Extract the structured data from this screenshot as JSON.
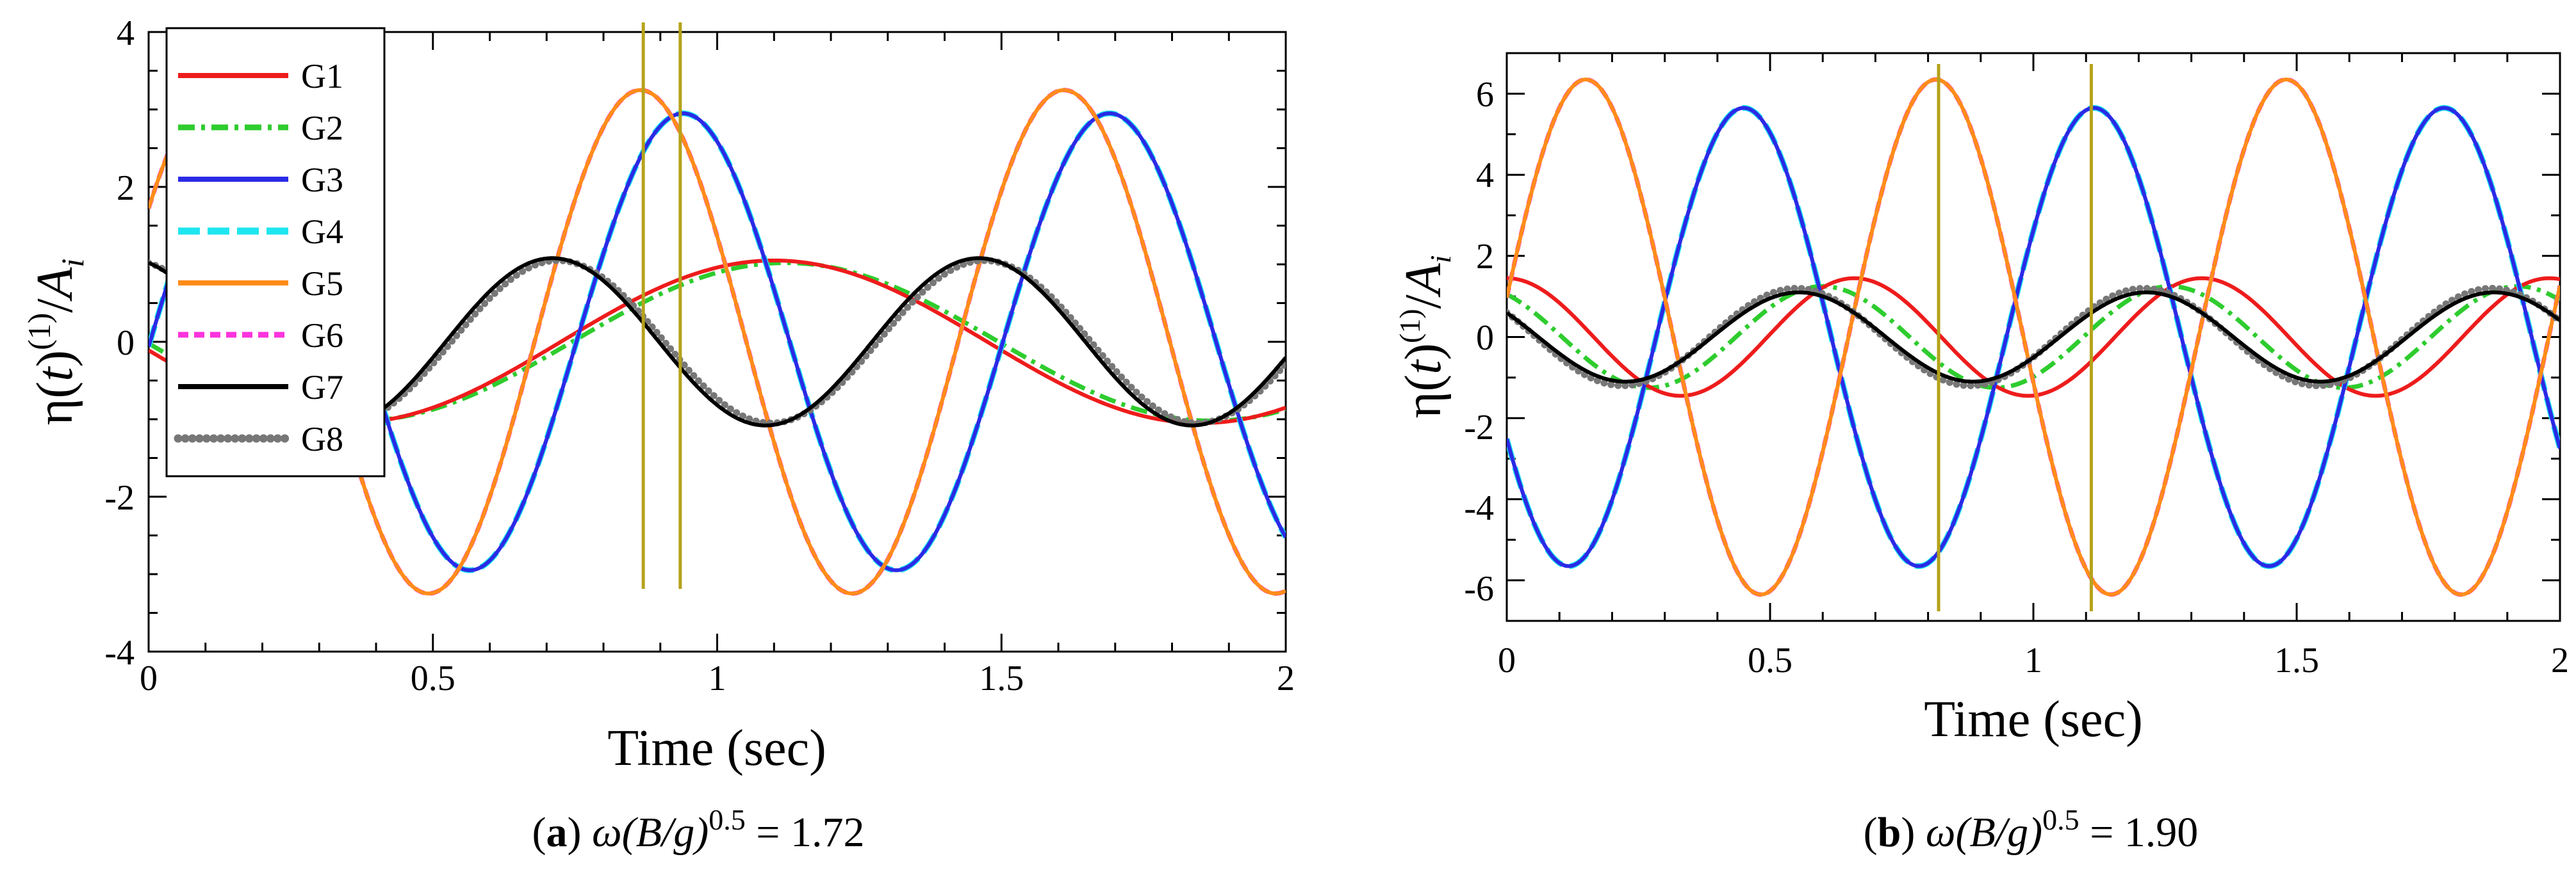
{
  "chart_data": [
    {
      "type": "line",
      "xlabel": "Time (sec)",
      "ylabel": {
        "eta": "η(",
        "t": "t",
        "rp": ")",
        "sup": "(1)",
        "slash": "/",
        "A": "A",
        "sub": "i"
      },
      "xlim": [
        0,
        2
      ],
      "ylim": [
        -4,
        4
      ],
      "x_ticks": [
        "0",
        "0.5",
        "1",
        "1.5",
        "2"
      ],
      "y_ticks": [
        "-4",
        "-2",
        "0",
        "2",
        "4"
      ],
      "grid": false,
      "legend": "top-left",
      "caption": {
        "label": "a",
        "expr": "ω(B/g)",
        "exp": "0.5",
        "value": "= 1.72"
      },
      "vertical_markers": [
        0.87,
        0.935
      ],
      "marker_color": "#b5a21a",
      "series": [
        {
          "name": "G1",
          "color": "#ee1c1c",
          "dash": "solid",
          "period": 1.5,
          "amplitude": 1.05,
          "peak": 1.1
        },
        {
          "name": "G2",
          "color": "#2ecc2e",
          "dash": "dashdot",
          "period": 1.5,
          "amplitude": 1.02,
          "peak": 1.12
        },
        {
          "name": "G3",
          "color": "#2a2ae6",
          "dash": "solid",
          "period": 0.75,
          "amplitude": 2.95,
          "peak": 0.94
        },
        {
          "name": "G4",
          "color": "#1ee6f0",
          "dash": "longdash",
          "period": 0.75,
          "amplitude": 2.95,
          "peak": 0.94
        },
        {
          "name": "G5",
          "color": "#ff8c1a",
          "dash": "solid",
          "period": 0.745,
          "amplitude": 3.25,
          "peak": 0.865
        },
        {
          "name": "G6",
          "color": "#ff33dd",
          "dash": "dash",
          "period": 0.745,
          "amplitude": 3.25,
          "peak": 0.865
        },
        {
          "name": "G7",
          "color": "#000000",
          "dash": "solid",
          "period": 0.75,
          "amplitude": 1.08,
          "peak": 0.71
        },
        {
          "name": "G8",
          "color": "#777777",
          "dash": "dotted",
          "period": 0.75,
          "amplitude": 1.05,
          "peak": 0.72
        }
      ]
    },
    {
      "type": "line",
      "xlabel": "Time (sec)",
      "ylabel": {
        "eta": "η(",
        "t": "t",
        "rp": ")",
        "sup": "(1)",
        "slash": "/",
        "A": "A",
        "sub": "i"
      },
      "xlim": [
        0,
        2
      ],
      "ylim": [
        -7,
        7
      ],
      "x_ticks": [
        "0",
        "0.5",
        "1",
        "1.5",
        "2"
      ],
      "y_ticks": [
        "-6",
        "-4",
        "-2",
        "0",
        "2",
        "4",
        "6"
      ],
      "grid": false,
      "caption": {
        "label": "b",
        "expr": "ω(B/g)",
        "exp": "0.5",
        "value": "= 1.90"
      },
      "vertical_markers": [
        0.82,
        1.11
      ],
      "marker_color": "#b5a21a",
      "series": [
        {
          "name": "G1",
          "color": "#ee1c1c",
          "dash": "solid",
          "period": 0.66,
          "amplitude": 1.45,
          "peak": 0.66
        },
        {
          "name": "G2",
          "color": "#2ecc2e",
          "dash": "dashdot",
          "period": 0.66,
          "amplitude": 1.25,
          "peak": 0.6
        },
        {
          "name": "G3",
          "color": "#2a2ae6",
          "dash": "solid",
          "period": 0.665,
          "amplitude": 5.65,
          "peak": 0.45
        },
        {
          "name": "G4",
          "color": "#1ee6f0",
          "dash": "longdash",
          "period": 0.665,
          "amplitude": 5.65,
          "peak": 0.45
        },
        {
          "name": "G5",
          "color": "#ff8c1a",
          "dash": "solid",
          "period": 0.665,
          "amplitude": 6.35,
          "peak": 0.15
        },
        {
          "name": "G6",
          "color": "#ff33dd",
          "dash": "dash",
          "period": 0.665,
          "amplitude": 6.35,
          "peak": 0.15
        },
        {
          "name": "G7",
          "color": "#000000",
          "dash": "solid",
          "period": 0.66,
          "amplitude": 1.1,
          "peak": 0.555
        },
        {
          "name": "G8",
          "color": "#777777",
          "dash": "dotted",
          "period": 0.66,
          "amplitude": 1.2,
          "peak": 0.55
        }
      ]
    }
  ]
}
